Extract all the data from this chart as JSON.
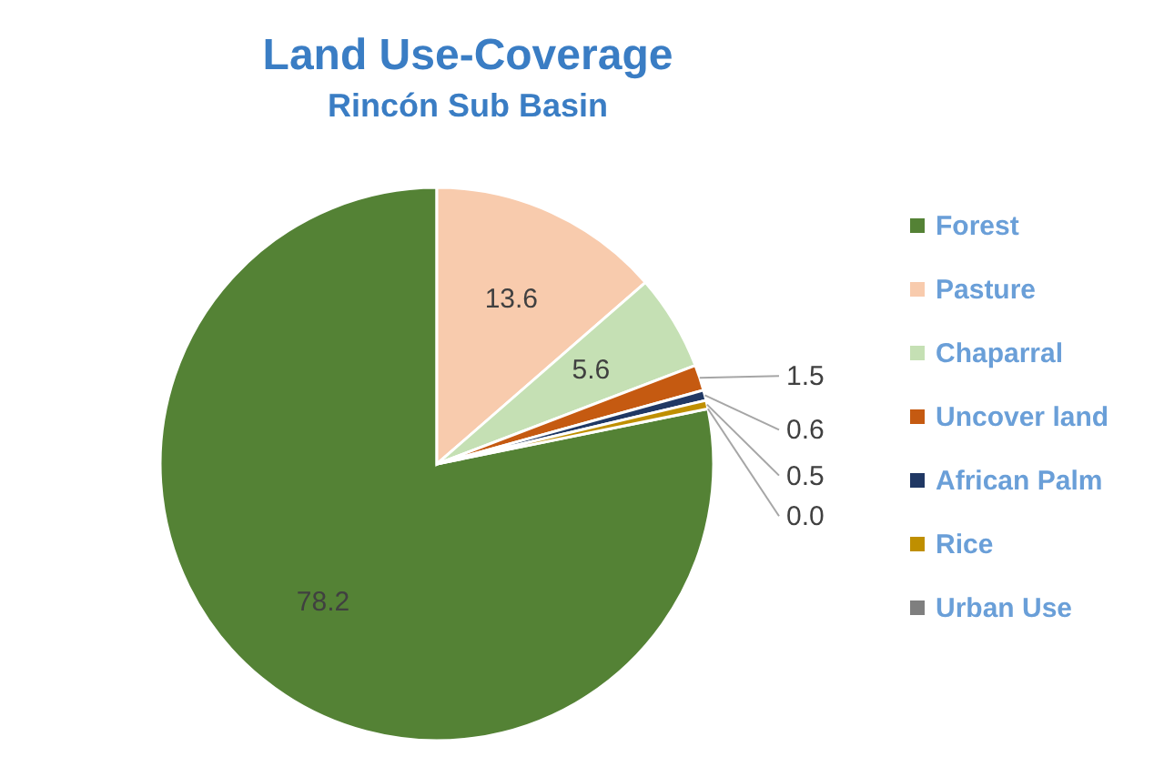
{
  "chart_data": {
    "type": "pie",
    "title": "Land Use-Coverage",
    "subtitle": "Rincón Sub Basin",
    "categories": [
      "Forest",
      "Pasture",
      "Chaparral",
      "Uncover land",
      "African Palm",
      "Rice",
      "Urban Use"
    ],
    "values": [
      78.2,
      13.6,
      5.6,
      1.5,
      0.6,
      0.5,
      0.0
    ],
    "value_labels": [
      "78.2",
      "13.6",
      "5.6",
      "1.5",
      "0.6",
      "0.5",
      "0.0"
    ],
    "colors": [
      "#548235",
      "#f8cbad",
      "#c5e0b4",
      "#c55a11",
      "#203864",
      "#bf8f00",
      "#7f7f7f"
    ],
    "legend": "right"
  }
}
